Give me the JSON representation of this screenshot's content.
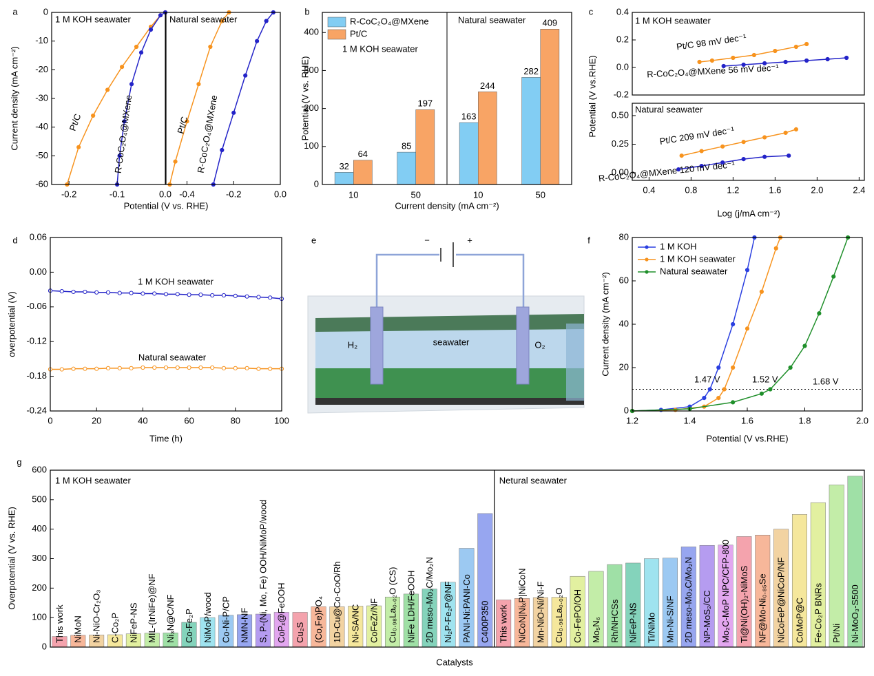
{
  "chart_data": [
    {
      "type": "line",
      "panel": "a",
      "y_label": "Current density (mA cm⁻²)",
      "annotations": [
        "1 M KOH seawater"
      ],
      "marker": "filled",
      "xlim": [
        -0.236,
        0
      ],
      "xticks": [
        -0.2,
        -0.1,
        {
          "value": 0,
          "label": "0.0"
        }
      ],
      "ylim": [
        -60,
        0
      ],
      "yticks": [
        -60,
        -50,
        -40,
        -30,
        -20,
        -10,
        0
      ],
      "series": [
        {
          "name": "Pt/C",
          "color": "#f7931e",
          "x": [
            0,
            -0.01,
            -0.03,
            -0.06,
            -0.09,
            -0.12,
            -0.15,
            -0.18,
            -0.204
          ],
          "values": [
            0,
            -1,
            -5,
            -12,
            -19,
            -27,
            -36,
            -47,
            -60
          ]
        },
        {
          "name": "R-CoC₂O₄@MXene",
          "color": "#2323c8",
          "x": [
            0,
            -0.01,
            -0.03,
            -0.05,
            -0.07,
            -0.085,
            -0.095,
            -0.1
          ],
          "values": [
            0,
            -1,
            -6,
            -14,
            -25,
            -38,
            -50,
            -60
          ]
        }
      ]
    },
    {
      "type": "line",
      "x_label": "Potential (V vs. RHE)",
      "annotations": [
        "Natural seawater"
      ],
      "marker": "filled",
      "xlim": [
        -0.49,
        0
      ],
      "xticks": [
        -0.4,
        -0.2,
        {
          "value": 0,
          "label": "0.0"
        }
      ],
      "ylim": [
        -60,
        0
      ],
      "series": [
        {
          "name": "Pt/C",
          "color": "#f7931e",
          "x": [
            -0.22,
            -0.25,
            -0.3,
            -0.35,
            -0.4,
            -0.45,
            -0.474
          ],
          "values": [
            0,
            -3,
            -12,
            -25,
            -38,
            -52,
            -60
          ]
        },
        {
          "name": "R-CoC₂O₄@MXene",
          "color": "#2323c8",
          "x": [
            -0.03,
            -0.06,
            -0.1,
            -0.15,
            -0.2,
            -0.25,
            -0.287
          ],
          "values": [
            0,
            -3,
            -10,
            -22,
            -35,
            -48,
            -60
          ]
        }
      ]
    },
    {
      "type": "bar",
      "panel": "b",
      "x_label": "Current density (mA cm⁻²)",
      "y_label": "Potential (V vs. RHE)",
      "annotations": [
        "Natural seawater",
        "1 M KOH seawater"
      ],
      "legend": "upper left",
      "categories": [
        "10",
        "50",
        "10",
        "50"
      ],
      "ylim": [
        0,
        453
      ],
      "yticks": [
        0,
        100,
        200,
        300,
        400
      ],
      "series": [
        {
          "name": "R-CoC₂O₄@MXene",
          "color": "#82cdf3",
          "values": [
            32,
            85,
            163,
            282
          ]
        },
        {
          "name": "Pt/C",
          "color": "#f8a465",
          "values": [
            64,
            197,
            244,
            409
          ]
        }
      ]
    },
    {
      "type": "line",
      "panel": "c",
      "y_label": "Potential (V vs.RHE)",
      "annotations": [
        "1 M KOH seawater"
      ],
      "marker": "filled",
      "xlim": [
        0.24,
        2.45
      ],
      "ylim": [
        -0.2,
        0.4
      ],
      "yticks": [
        -0.2,
        {
          "value": 0,
          "label": "0.0"
        },
        0.2,
        0.4
      ],
      "series": [
        {
          "name": "Pt/C 98 mV dec⁻¹",
          "color": "#f7931e",
          "x": [
            0.88,
            1.0,
            1.2,
            1.4,
            1.6,
            1.8,
            1.9
          ],
          "values": [
            0.04,
            0.05,
            0.07,
            0.09,
            0.12,
            0.15,
            0.17
          ]
        },
        {
          "name": "R-CoC₂O₄@MXene 56 mV dec⁻¹",
          "color": "#2323c8",
          "x": [
            1.11,
            1.3,
            1.5,
            1.7,
            1.9,
            2.1,
            2.28
          ],
          "values": [
            0.01,
            0.02,
            0.03,
            0.04,
            0.05,
            0.06,
            0.07
          ]
        }
      ]
    },
    {
      "type": "line",
      "x_label": "Log (j/mA cm⁻²)",
      "annotations": [
        "Natural seawater"
      ],
      "marker": "filled",
      "xlim": [
        0.24,
        2.45
      ],
      "xticks": [
        0.4,
        0.8,
        1.2,
        1.6,
        {
          "value": 2,
          "label": "2.0"
        },
        2.4
      ],
      "ylim": [
        -0.066,
        0.608
      ],
      "yticks": [
        {
          "value": 0,
          "label": "0.00"
        },
        0.25,
        {
          "value": 0.5,
          "label": "0.50"
        }
      ],
      "series": [
        {
          "name": "Pt/C 209 mV dec⁻¹",
          "color": "#f7931e",
          "x": [
            0.71,
            0.9,
            1.1,
            1.3,
            1.5,
            1.7,
            1.8
          ],
          "values": [
            0.15,
            0.19,
            0.23,
            0.27,
            0.31,
            0.35,
            0.38
          ]
        },
        {
          "name": "R-CoC₂O₄@MXene 120 mV dec⁻¹",
          "color": "#2323c8",
          "x": [
            0.68,
            0.9,
            1.1,
            1.3,
            1.5,
            1.73
          ],
          "values": [
            0.03,
            0.06,
            0.09,
            0.12,
            0.14,
            0.15
          ]
        }
      ]
    },
    {
      "type": "line",
      "panel": "d",
      "x_label": "Time (h)",
      "y_label": "overpotential (V)",
      "marker": "open",
      "xlim": [
        0,
        100
      ],
      "xticks": [
        0,
        20,
        40,
        60,
        80,
        100
      ],
      "ylim": [
        -0.24,
        0.06
      ],
      "yticks": [
        -0.24,
        -0.18,
        -0.12,
        -0.06,
        {
          "value": 0,
          "label": "0.00"
        },
        0.06
      ],
      "x": [
        0,
        5,
        10,
        15,
        20,
        25,
        30,
        35,
        40,
        45,
        50,
        55,
        60,
        65,
        70,
        75,
        80,
        85,
        90,
        95,
        100
      ],
      "series": [
        {
          "name": "1 M KOH seawater",
          "color": "#2323c8",
          "values": [
            -0.032,
            -0.033,
            -0.034,
            -0.034,
            -0.035,
            -0.035,
            -0.036,
            -0.036,
            -0.037,
            -0.037,
            -0.038,
            -0.038,
            -0.039,
            -0.039,
            -0.04,
            -0.04,
            -0.041,
            -0.042,
            -0.043,
            -0.044,
            -0.046
          ]
        },
        {
          "name": "Natural seawater",
          "color": "#f7931e",
          "values": [
            -0.168,
            -0.168,
            -0.167,
            -0.167,
            -0.167,
            -0.166,
            -0.166,
            -0.166,
            -0.165,
            -0.165,
            -0.165,
            -0.165,
            -0.165,
            -0.165,
            -0.165,
            -0.166,
            -0.166,
            -0.166,
            -0.167,
            -0.167,
            -0.167
          ]
        }
      ]
    },
    {
      "type": "line",
      "panel": "f",
      "x_label": "Potential (V vs.RHE)",
      "y_label": "Current density (mA cm⁻²)",
      "marker": "filled",
      "legend": "upper left",
      "annotations": [
        "1.47 V",
        "1.52 V",
        "1.68 V"
      ],
      "reference_y": 10,
      "xlim": [
        1.2,
        2.0
      ],
      "xticks": [
        1.2,
        1.4,
        1.6,
        1.8,
        {
          "value": 2,
          "label": "2.0"
        }
      ],
      "ylim": [
        0,
        80
      ],
      "yticks": [
        0,
        20,
        40,
        60,
        80
      ],
      "series": [
        {
          "name": "1 M KOH",
          "color": "#2a3fe0",
          "x": [
            1.2,
            1.3,
            1.4,
            1.45,
            1.47,
            1.5,
            1.55,
            1.6,
            1.625
          ],
          "values": [
            0,
            0.5,
            2,
            6,
            10,
            20,
            40,
            65,
            80
          ]
        },
        {
          "name": "1 M KOH seawater",
          "color": "#f7931e",
          "x": [
            1.2,
            1.35,
            1.45,
            1.5,
            1.52,
            1.55,
            1.6,
            1.65,
            1.7,
            1.715
          ],
          "values": [
            0,
            0.5,
            2,
            6,
            10,
            20,
            38,
            55,
            75,
            80
          ]
        },
        {
          "name": "Natural seawater",
          "color": "#1f8f2a",
          "x": [
            1.2,
            1.4,
            1.55,
            1.65,
            1.68,
            1.75,
            1.8,
            1.85,
            1.9,
            1.95
          ],
          "values": [
            0,
            1,
            4,
            8,
            10,
            20,
            30,
            45,
            62,
            80
          ]
        }
      ]
    },
    {
      "type": "bar",
      "panel": "g",
      "x_label": "Catalysts",
      "y_label": "Overpotential (V vs. RHE)",
      "ylim": [
        0,
        600
      ],
      "yticks": [
        0,
        100,
        200,
        300,
        400,
        500,
        600
      ],
      "highlight": "This work",
      "highlight_color": "#e0161e",
      "palette": [
        "#f4a3ad",
        "#f7b79a",
        "#f2d3a2",
        "#f5e79c",
        "#e2f0a0",
        "#c3eda8",
        "#9fe0a6",
        "#84d3bb",
        "#9fe3ef",
        "#9cc9f2",
        "#97a6f0",
        "#b59cf0",
        "#e2a6ef"
      ],
      "series": [
        {
          "name": "1 M KOH seawater",
          "categories": [
            "This work",
            "NiMoN",
            "Ni-NiO-Cr₂O₃",
            "C-Co₂P",
            "NiFeP-NS",
            "MIL-(IrNiFe)@NF",
            "Ni₃N@C/NF",
            "Co-Fe₂P",
            "NiMoP/wood",
            "Co-Ni-P/CP",
            "NMN-NF",
            "S, P-(Ni, Mo, Fe) OOH/NiMoP/wood",
            "CoPₓ@FeOOH",
            "Cu₂S",
            "(Co,Fe)PO₄",
            "1D-Cu@Co-CoO/Rh",
            "Ni-SA/NC",
            "CoFeZr/NF",
            "Cu₀.₉₈La₀.₀₂O (CS)",
            "NiFe LDH/FeOOH",
            "2D meso-Mo₂C/Mo₂N",
            "Ni₂P-Fe₂P@NF",
            "PANI-Ni:PANI-Co",
            "C400P350"
          ],
          "values": [
            36,
            40,
            41,
            42,
            45,
            47,
            48,
            84,
            100,
            108,
            110,
            112,
            118,
            118,
            137,
            137,
            139,
            140,
            170,
            180,
            197,
            220,
            335,
            453
          ]
        },
        {
          "name": "Netural seawater",
          "categories": [
            "This work",
            "NiCoN|NiₓP|NiCoN",
            "Mn-NiO-Ni/Ni-F",
            "Cu₀.₉₈La₀.₀₂O",
            "Co-FePO/OH",
            "Mo₅N₆",
            "Rh/NHCSs",
            "NiFeP-NS",
            "Ti/NiMo",
            "Mn-Ni-S/NF",
            "2D meso-Mo₂C/Mo₂N",
            "NP-MoS₂/CC",
            "Mo₂C-MoP NPC/CFP-800",
            "Ti@Ni(OH)₂-NiMoS",
            "NF@Mo-Ni₀.₈₅Se",
            "NiCoFeP@NiCoP/NF",
            "CoMoP@C",
            "Fe-Co₂P BNRs",
            "Pt/Ni",
            "Ni-MoO₃-S500"
          ],
          "values": [
            160,
            165,
            168,
            169,
            240,
            257,
            280,
            285,
            300,
            302,
            340,
            345,
            346,
            375,
            380,
            400,
            450,
            490,
            550,
            580
          ]
        }
      ]
    }
  ],
  "illustration": {
    "panel": "e",
    "minus": "−",
    "plus": "+",
    "cathode": "H₂",
    "electrolyte": "seawater",
    "anode": "O₂"
  }
}
